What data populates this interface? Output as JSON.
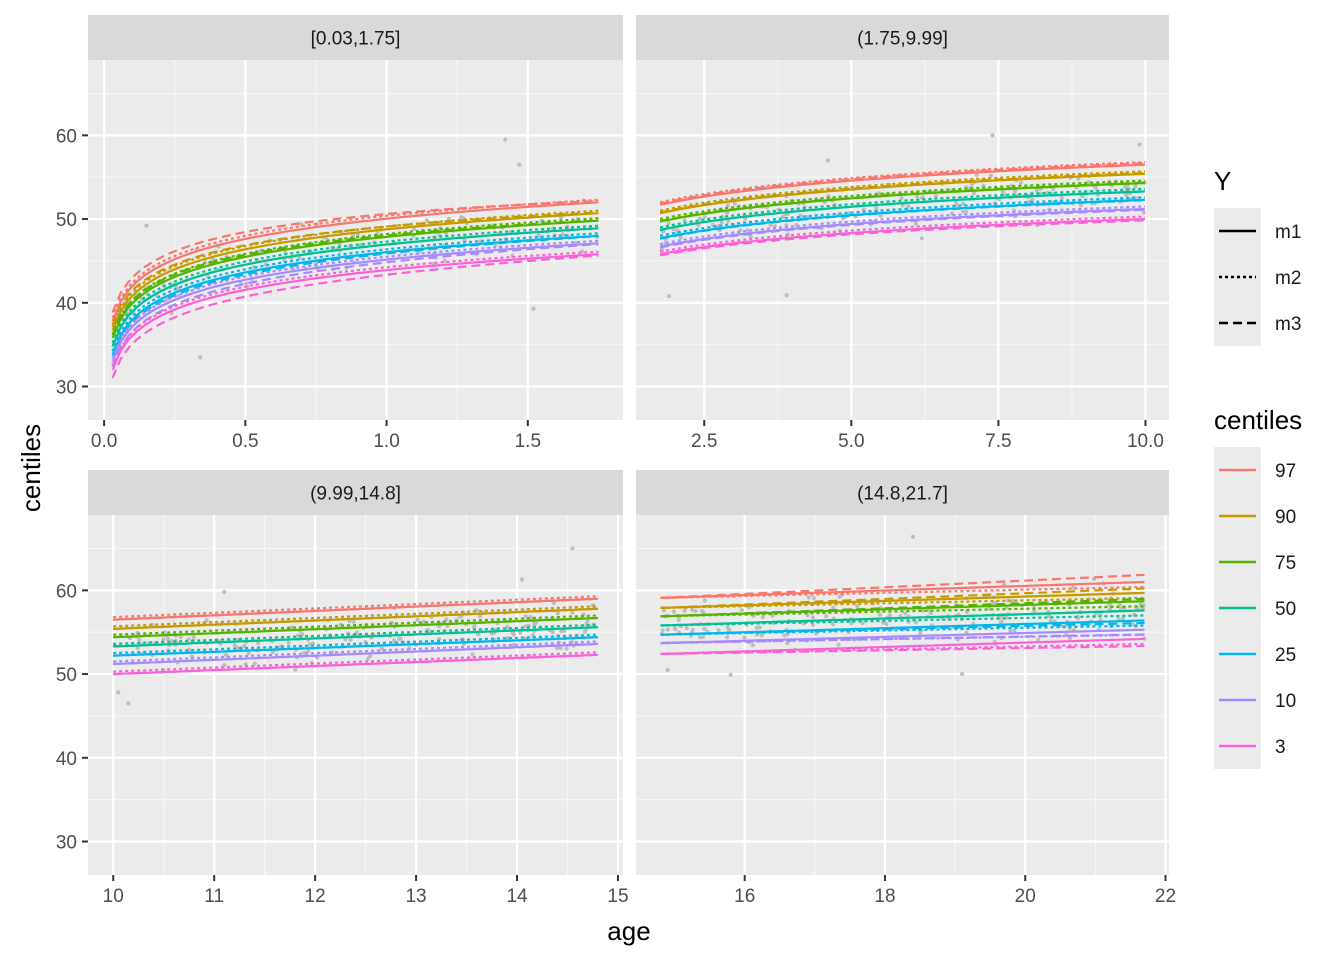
{
  "chart_data": {
    "type": "line",
    "xlabel": "age",
    "ylabel": "centiles",
    "legend_position": "right",
    "shared_ylim": [
      26,
      69
    ],
    "y_ticks": [
      30,
      40,
      50,
      60
    ],
    "y_tick_labels": [
      "30",
      "40",
      "50",
      "60"
    ],
    "linetype_legend": {
      "title": "Y",
      "entries": [
        {
          "label": "m1",
          "style": "solid"
        },
        {
          "label": "m2",
          "style": "dotted"
        },
        {
          "label": "m3",
          "style": "dashed"
        }
      ]
    },
    "colour_legend": {
      "title": "centiles",
      "entries": [
        {
          "label": "97",
          "color": "#F8766D"
        },
        {
          "label": "90",
          "color": "#C49A00"
        },
        {
          "label": "75",
          "color": "#53B400"
        },
        {
          "label": "50",
          "color": "#00C094"
        },
        {
          "label": "25",
          "color": "#00B6EB"
        },
        {
          "label": "10",
          "color": "#A58AFF"
        },
        {
          "label": "3",
          "color": "#FB61D7"
        }
      ]
    },
    "point_color": "#bdbdbd",
    "panels": [
      {
        "strip": "[0.03,1.75]",
        "xlim": [
          -0.057,
          1.837
        ],
        "x_ticks": [
          0,
          0.5,
          1,
          1.5
        ],
        "x_tick_labels": [
          "0.0",
          "0.5",
          "1.0",
          "1.5"
        ],
        "x_range": [
          0.03,
          1.75
        ],
        "curve_shape": "log",
        "centiles_m1_start": {
          "97": 37.8,
          "90": 36.7,
          "75": 35.8,
          "50": 34.8,
          "25": 33.8,
          "10": 33.0,
          "3": 32.0
        },
        "centiles_m1_end": {
          "97": 52.0,
          "90": 50.7,
          "75": 49.8,
          "50": 48.9,
          "25": 48.0,
          "10": 47.1,
          "3": 45.8
        },
        "m2_offset_start": 0.4,
        "m2_offset_end": 0.3,
        "m3_spread_start": 1.35,
        "m3_spread_end": 1.05,
        "points": {
          "count": 150,
          "y_sd": 2.2,
          "outliers": [
            [
              1.42,
              59.5
            ],
            [
              1.47,
              56.5
            ],
            [
              1.52,
              39.3
            ],
            [
              0.34,
              33.5
            ],
            [
              0.15,
              49.2
            ]
          ]
        }
      },
      {
        "strip": "(1.75,9.99]",
        "xlim": [
          1.34,
          10.4
        ],
        "x_ticks": [
          2.5,
          5,
          7.5,
          10
        ],
        "x_tick_labels": [
          "2.5",
          "5.0",
          "7.5",
          "10.0"
        ],
        "x_range": [
          1.75,
          9.99
        ],
        "curve_shape": "log",
        "centiles_m1_start": {
          "97": 51.7,
          "90": 50.7,
          "75": 49.7,
          "50": 48.7,
          "25": 47.7,
          "10": 46.7,
          "3": 45.8
        },
        "centiles_m1_end": {
          "97": 56.5,
          "90": 55.4,
          "75": 54.3,
          "50": 53.3,
          "25": 52.3,
          "10": 51.2,
          "3": 50.0
        },
        "m2_offset_start": 0.3,
        "m2_offset_end": 0.3,
        "m3_spread_start": 1.05,
        "m3_spread_end": 1.05,
        "points": {
          "count": 200,
          "y_sd": 2.0,
          "outliers": [
            [
              7.4,
              60.0
            ],
            [
              9.9,
              58.9
            ],
            [
              3.9,
              40.9
            ],
            [
              1.9,
              40.8
            ],
            [
              4.6,
              57.0
            ]
          ]
        }
      },
      {
        "strip": "(9.99,14.8]",
        "xlim": [
          9.75,
          15.05
        ],
        "x_ticks": [
          10,
          11,
          12,
          13,
          14,
          15
        ],
        "x_tick_labels": [
          "10",
          "11",
          "12",
          "13",
          "14",
          "15"
        ],
        "x_range": [
          10.0,
          14.8
        ],
        "curve_shape": "linear",
        "centiles_m1_start": {
          "97": 56.5,
          "90": 55.4,
          "75": 54.4,
          "50": 53.3,
          "25": 52.2,
          "10": 51.2,
          "3": 50.0
        },
        "centiles_m1_end": {
          "97": 59.0,
          "90": 57.8,
          "75": 56.7,
          "50": 55.6,
          "25": 54.4,
          "10": 53.6,
          "3": 52.3
        },
        "m2_offset_start": 0.3,
        "m2_offset_end": 0.3,
        "m3_spread_start": 1.0,
        "m3_spread_end": 1.0,
        "points": {
          "count": 200,
          "y_sd": 2.0,
          "outliers": [
            [
              14.55,
              65.0
            ],
            [
              14.05,
              61.3
            ],
            [
              10.15,
              46.5
            ],
            [
              11.1,
              59.8
            ],
            [
              10.05,
              47.8
            ]
          ]
        }
      },
      {
        "strip": "(14.8,21.7]",
        "xlim": [
          14.45,
          22.05
        ],
        "x_ticks": [
          16,
          18,
          20,
          22
        ],
        "x_tick_labels": [
          "16",
          "18",
          "20",
          "22"
        ],
        "x_range": [
          14.8,
          21.7
        ],
        "curve_shape": "linear",
        "centiles_m1_start": {
          "97": 59.1,
          "90": 57.9,
          "75": 56.9,
          "50": 55.8,
          "25": 54.7,
          "10": 53.7,
          "3": 52.4
        },
        "centiles_m1_end": {
          "97": 61.0,
          "90": 59.7,
          "75": 58.7,
          "50": 57.6,
          "25": 56.4,
          "10": 55.3,
          "3": 54.2
        },
        "m2_offset_start": 0.0,
        "m2_offset_end": -0.6,
        "m3_spread_start": 1.0,
        "m3_spread_end": 1.25,
        "points": {
          "count": 200,
          "y_sd": 2.1,
          "outliers": [
            [
              18.4,
              66.4
            ],
            [
              15.8,
              49.9
            ],
            [
              19.1,
              50.0
            ],
            [
              14.9,
              50.5
            ]
          ]
        }
      }
    ]
  }
}
